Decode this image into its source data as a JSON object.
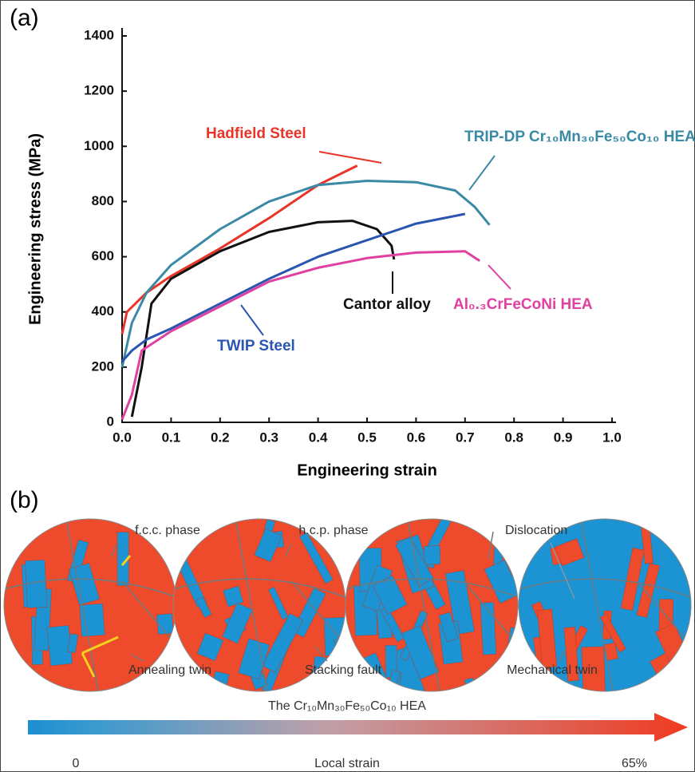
{
  "chart_data": {
    "type": "line",
    "panel_label": "(a)",
    "x_label": "Engineering strain",
    "y_label": "Engineering stress (MPa)",
    "xlim": [
      0,
      1
    ],
    "ylim": [
      0,
      1400
    ],
    "xticks": [
      {
        "value": 0,
        "label": "0.0"
      },
      0.1,
      0.2,
      0.3,
      0.4,
      0.5,
      0.6,
      0.7,
      0.8,
      0.9,
      {
        "value": 1,
        "label": "1.0"
      }
    ],
    "yticks": [
      0,
      200,
      400,
      600,
      800,
      1000,
      1200,
      1400
    ],
    "series": [
      {
        "name": "Hadfield Steel",
        "color": "#e8352a",
        "x": [
          0,
          0.01,
          0.05,
          0.1,
          0.2,
          0.3,
          0.4,
          0.48
        ],
        "values": [
          320,
          400,
          470,
          530,
          630,
          740,
          860,
          930
        ]
      },
      {
        "name": "TRIP-DP Cr₁₀Mn₃₀Fe₅₀Co₁₀ HEA",
        "color": "#3a8aa6",
        "x": [
          0,
          0.02,
          0.05,
          0.1,
          0.2,
          0.3,
          0.4,
          0.5,
          0.6,
          0.68,
          0.72,
          0.75
        ],
        "values": [
          200,
          360,
          470,
          570,
          700,
          800,
          860,
          875,
          870,
          840,
          780,
          715
        ]
      },
      {
        "name": "Cantor alloy",
        "color": "#111111",
        "x": [
          0.02,
          0.04,
          0.06,
          0.1,
          0.2,
          0.3,
          0.4,
          0.47,
          0.52,
          0.55,
          0.555
        ],
        "values": [
          20,
          200,
          430,
          520,
          620,
          690,
          725,
          730,
          700,
          640,
          590
        ]
      },
      {
        "name": "TWIP Steel",
        "color": "#2a55b0",
        "x": [
          0,
          0.02,
          0.05,
          0.1,
          0.2,
          0.3,
          0.4,
          0.5,
          0.6,
          0.7
        ],
        "values": [
          220,
          260,
          300,
          340,
          430,
          520,
          600,
          660,
          720,
          755
        ]
      },
      {
        "name": "Al₀.₃CrFeCoNi HEA",
        "color": "#e040a0",
        "x": [
          0,
          0.02,
          0.04,
          0.1,
          0.2,
          0.3,
          0.4,
          0.5,
          0.6,
          0.7,
          0.73
        ],
        "values": [
          10,
          100,
          260,
          330,
          420,
          510,
          560,
          595,
          615,
          620,
          585
        ]
      }
    ]
  },
  "panel_b": {
    "panel_label": "(b)",
    "labels": [
      "f.c.c. phase",
      "h.c.p. phase",
      "Dislocation",
      "Annealing twin",
      "Stacking fault",
      "Mechanical twin"
    ],
    "caption": "The Cr₁₀Mn₃₀Fe₅₀Co₁₀ HEA",
    "colorbar": {
      "min_label": "0",
      "title": "Local strain",
      "max_label": "65%"
    }
  }
}
